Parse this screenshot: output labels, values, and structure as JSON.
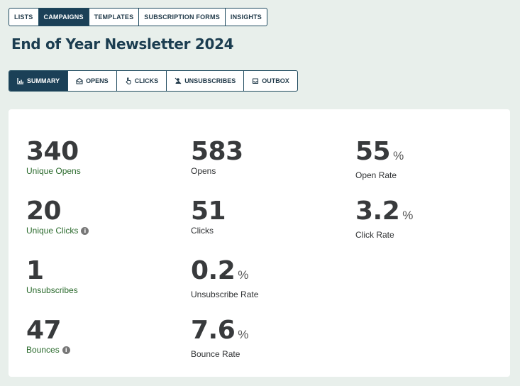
{
  "topnav": {
    "tabs": [
      {
        "label": "LISTS"
      },
      {
        "label": "CAMPAIGNS"
      },
      {
        "label": "TEMPLATES"
      },
      {
        "label": "SUBSCRIPTION FORMS"
      },
      {
        "label": "INSIGHTS"
      }
    ],
    "active": "CAMPAIGNS"
  },
  "page": {
    "title": "End of Year Newsletter 2024"
  },
  "subnav": {
    "tabs": [
      {
        "label": "SUMMARY",
        "icon": "bar-chart-icon"
      },
      {
        "label": "OPENS",
        "icon": "open-envelope-icon"
      },
      {
        "label": "CLICKS",
        "icon": "pointer-hand-icon"
      },
      {
        "label": "UNSUBSCRIBES",
        "icon": "user-remove-icon"
      },
      {
        "label": "OUTBOX",
        "icon": "outbox-tray-icon"
      }
    ],
    "active": "SUMMARY"
  },
  "stats": {
    "unique_opens": {
      "value": "340",
      "label": "Unique Opens"
    },
    "opens": {
      "value": "583",
      "label": "Opens"
    },
    "open_rate": {
      "value": "55",
      "unit": "%",
      "label": "Open Rate"
    },
    "unique_clicks": {
      "value": "20",
      "label": "Unique Clicks"
    },
    "clicks": {
      "value": "51",
      "label": "Clicks"
    },
    "click_rate": {
      "value": "3.2",
      "unit": "%",
      "label": "Click Rate"
    },
    "unsubscribes": {
      "value": "1",
      "label": "Unsubscribes"
    },
    "unsubscribe_rate": {
      "value": "0.2",
      "unit": "%",
      "label": "Unsubscribe Rate"
    },
    "bounces": {
      "value": "47",
      "label": "Bounces"
    },
    "bounce_rate": {
      "value": "7.6",
      "unit": "%",
      "label": "Bounce Rate"
    }
  },
  "colors": {
    "accent": "#1b4057",
    "link_green": "#2a6a2c",
    "background": "#e8efeb"
  }
}
